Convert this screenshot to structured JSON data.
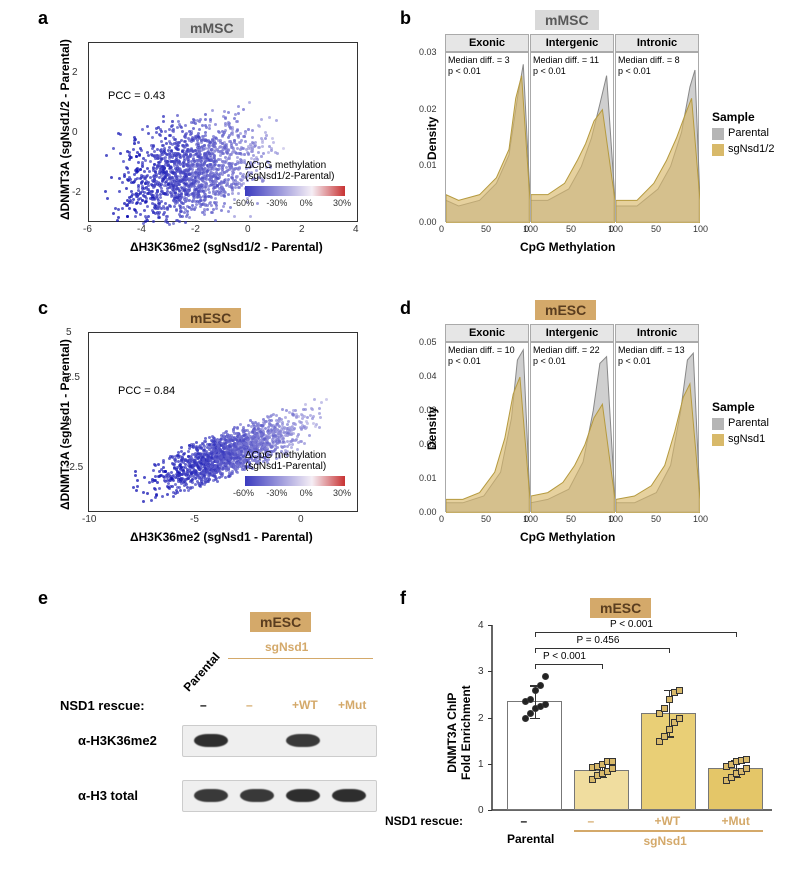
{
  "colors": {
    "mMSC_badge_bg": "#d9d9d9",
    "mMSC_badge_fg": "#595959",
    "mESC_badge_bg": "#d4a96a",
    "mESC_badge_fg": "#5a3d1f",
    "sgNsd_label": "#d4a96a",
    "parental_fill": "#b5b5b5",
    "sgNsd_fill": "#d8b96a",
    "grad_low": "#3b3bbf",
    "grad_mid": "#f5eef5",
    "grad_high": "#c83232",
    "bar_parental": "#ffffff",
    "bar_sg_none": "#f0dd9f",
    "bar_sg_wt": "#e9cf76",
    "bar_sg_mut": "#e4c668"
  },
  "panel_a": {
    "label": "a",
    "cell_type": "mMSC",
    "xlabel": "ΔH3K36me2 (sgNsd1/2 - Parental)",
    "ylabel": "ΔDNMT3A (sgNsd1/2 - Parental)",
    "xlim": [
      -6,
      4
    ],
    "xticks": [
      -6,
      -4,
      -2,
      0,
      2,
      4
    ],
    "ylim": [
      -3,
      3
    ],
    "yticks": [
      -2,
      0,
      2
    ],
    "pcc_label": "PCC = 0.43",
    "gradient_title": "ΔCpG methylation\n(sgNsd1/2-Parental)",
    "gradient_ticks": [
      "-60%",
      "-30%",
      "0%",
      "30%"
    ]
  },
  "panel_b": {
    "label": "b",
    "cell_type": "mMSC",
    "xlabel": "CpG Methylation",
    "ylabel": "Density",
    "xlim": [
      0,
      100
    ],
    "xticks": [
      0,
      50,
      100
    ],
    "ylim": [
      0,
      0.03
    ],
    "yticks": [
      "0.00",
      "0.01",
      "0.02",
      "0.03"
    ],
    "facets": [
      {
        "name": "Exonic",
        "median": "Median diff. = 3",
        "p": "p < 0.01"
      },
      {
        "name": "Intergenic",
        "median": "Median diff. = 11",
        "p": "p < 0.01"
      },
      {
        "name": "Intronic",
        "median": "Median diff. = 8",
        "p": "p < 0.01"
      }
    ],
    "legend_title": "Sample",
    "legend_items": [
      "Parental",
      "sgNsd1/2"
    ]
  },
  "panel_c": {
    "label": "c",
    "cell_type": "mESC",
    "xlabel": "ΔH3K36me2 (sgNsd1 - Parental)",
    "ylabel": "ΔDNMT3A (sgNsd1 - Parental)",
    "xlim": [
      -10,
      2.5
    ],
    "xticks": [
      -10,
      -5,
      0
    ],
    "ylim": [
      -5,
      5
    ],
    "yticks": [
      -2.5,
      0,
      2.5,
      5
    ],
    "pcc_label": "PCC = 0.84",
    "gradient_title": "ΔCpG methylation\n(sgNsd1-Parental)",
    "gradient_ticks": [
      "-60%",
      "-30%",
      "0%",
      "30%"
    ]
  },
  "panel_d": {
    "label": "d",
    "cell_type": "mESC",
    "xlabel": "CpG Methylation",
    "ylabel": "Density",
    "xlim": [
      0,
      100
    ],
    "xticks": [
      0,
      50,
      100
    ],
    "ylim": [
      0,
      0.05
    ],
    "yticks": [
      "0.00",
      "0.01",
      "0.02",
      "0.03",
      "0.04",
      "0.05"
    ],
    "facets": [
      {
        "name": "Exonic",
        "median": "Median diff. = 10",
        "p": "p < 0.01"
      },
      {
        "name": "Intergenic",
        "median": "Median diff. = 22",
        "p": "p < 0.01"
      },
      {
        "name": "Intronic",
        "median": "Median diff. = 13",
        "p": "p < 0.01"
      }
    ],
    "legend_title": "Sample",
    "legend_items": [
      "Parental",
      "sgNsd1"
    ]
  },
  "panel_e": {
    "label": "e",
    "cell_type": "mESC",
    "rescue_label": "NSD1 rescue:",
    "lanes": [
      "Parental",
      "sgNsd1"
    ],
    "lane_headers": [
      "–",
      "–",
      "+WT",
      "+Mut"
    ],
    "rows": [
      "α-H3K36me2",
      "α-H3 total"
    ],
    "band_intensity": {
      "row0": [
        0.9,
        0.05,
        0.85,
        0.05
      ],
      "row1": [
        0.85,
        0.85,
        0.9,
        0.9
      ]
    }
  },
  "panel_f": {
    "label": "f",
    "cell_type": "mESC",
    "ylabel": "DNMT3A ChIP\nFold Enrichment",
    "ylim": [
      0,
      4
    ],
    "yticks": [
      0,
      1,
      2,
      3,
      4
    ],
    "rescue_label": "NSD1 rescue:",
    "groups": [
      {
        "name": "Parental",
        "rescue": "–",
        "mean": 2.35,
        "err": 0.35,
        "fill": "bar_parental",
        "shape": "circle",
        "pts": [
          2.0,
          2.1,
          2.2,
          2.25,
          2.3,
          2.35,
          2.4,
          2.6,
          2.7,
          2.9
        ]
      },
      {
        "name": "–",
        "rescue": "–",
        "mean": 0.87,
        "err": 0.15,
        "fill": "bar_sg_none",
        "shape": "square",
        "pts": [
          0.68,
          0.75,
          0.8,
          0.85,
          0.9,
          0.92,
          0.95,
          1.0,
          1.05,
          1.05
        ]
      },
      {
        "name": "+WT",
        "rescue": "+WT",
        "mean": 2.1,
        "err": 0.5,
        "fill": "bar_sg_wt",
        "shape": "square",
        "pts": [
          1.5,
          1.6,
          1.75,
          1.9,
          2.0,
          2.1,
          2.2,
          2.4,
          2.55,
          2.6
        ]
      },
      {
        "name": "+Mut",
        "rescue": "+Mut",
        "mean": 0.9,
        "err": 0.18,
        "fill": "bar_sg_mut",
        "shape": "square",
        "pts": [
          0.65,
          0.72,
          0.8,
          0.85,
          0.9,
          0.95,
          1.0,
          1.05,
          1.08,
          1.1
        ]
      }
    ],
    "bottom_labels": [
      "Parental",
      "sgNsd1"
    ],
    "sig": [
      {
        "from": 0,
        "to": 1,
        "text": "P < 0.001",
        "y": 3.15
      },
      {
        "from": 0,
        "to": 2,
        "text": "P = 0.456",
        "y": 3.5
      },
      {
        "from": 0,
        "to": 3,
        "text": "P < 0.001",
        "y": 3.85
      }
    ]
  }
}
